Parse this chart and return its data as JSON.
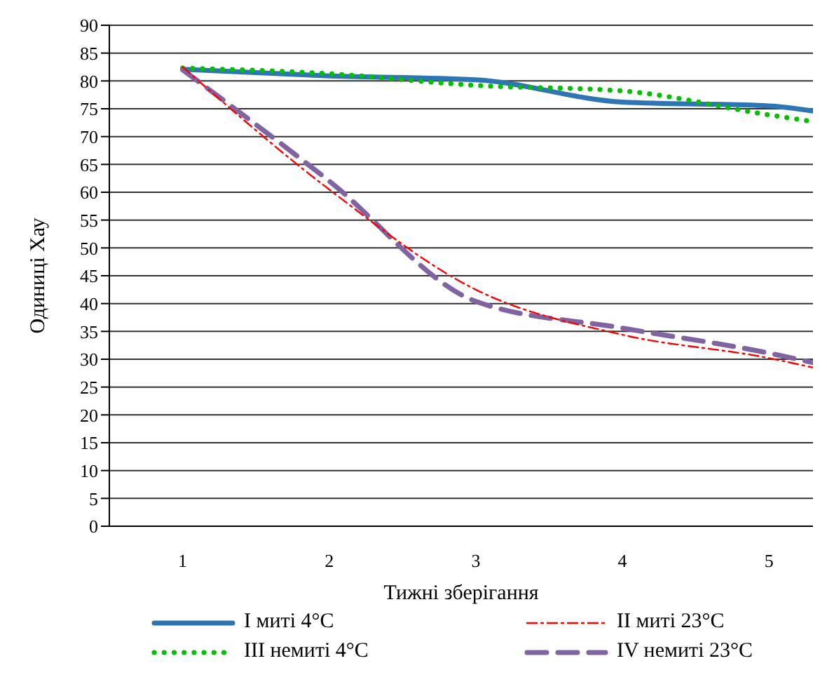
{
  "chart_data": {
    "type": "line",
    "xlabel": "Тижні зберігання",
    "ylabel": "Одиниці Хау",
    "x": [
      1,
      2,
      3,
      4,
      5,
      5.3
    ],
    "xlim": [
      0.5,
      5.3
    ],
    "xticks": [
      1,
      2,
      3,
      4,
      5
    ],
    "ylim": [
      0,
      90
    ],
    "yticks": [
      0,
      5,
      10,
      15,
      20,
      25,
      30,
      35,
      40,
      45,
      50,
      55,
      60,
      65,
      70,
      75,
      80,
      85,
      90
    ],
    "grid": "y",
    "legend": "bottom",
    "marker": "none",
    "series": [
      {
        "name": "I миті 4°C",
        "color": "#2e75b6",
        "line_style": "solid",
        "values": [
          82.1,
          80.9,
          80.2,
          76.2,
          75.5,
          74.6
        ]
      },
      {
        "name": "II миті 23°C",
        "color": "#ff0000",
        "line_style": "dashdot",
        "values": [
          82.5,
          60.5,
          42.5,
          34.4,
          30.2,
          28.5
        ]
      },
      {
        "name": "III немиті 4°C",
        "color": "#00c000",
        "line_style": "dotted",
        "values": [
          82.3,
          81.3,
          79.2,
          78.2,
          73.9,
          72.7
        ]
      },
      {
        "name": "IV немиті 23°C",
        "color": "#8064a2",
        "line_style": "dashed",
        "values": [
          82,
          62,
          40.4,
          35.6,
          31.1,
          29.4
        ]
      }
    ]
  }
}
